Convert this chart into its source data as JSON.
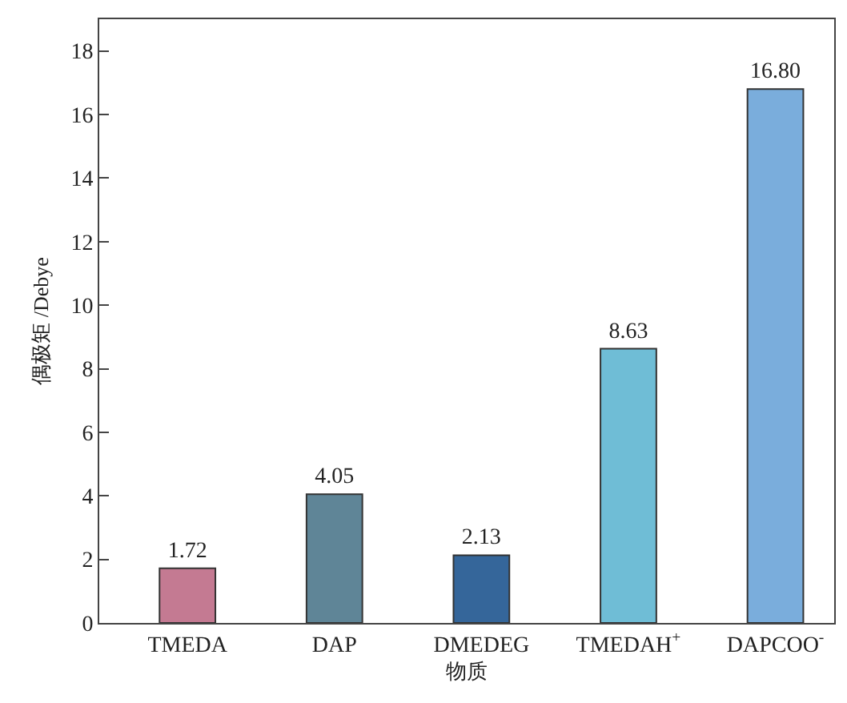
{
  "chart_data": {
    "type": "bar",
    "xlabel": "物质",
    "ylabel": "偶极矩 /Debye",
    "categories": [
      "TMEDA",
      "DAP",
      "DMEDEG",
      "TMEDAH$^{+}$",
      "DAPCOO$^{-}$"
    ],
    "values": [
      1.72,
      4.05,
      2.13,
      8.63,
      16.8
    ],
    "colors": [
      "#c47a92",
      "#5f8597",
      "#35669a",
      "#6fbdd6",
      "#7aaddc"
    ],
    "value_labels": [
      "1.72",
      "4.05",
      "2.13",
      "8.63",
      "16.80"
    ],
    "ylim": [
      0,
      19
    ],
    "yticks": [
      0,
      2,
      4,
      6,
      8,
      10,
      12,
      14,
      16,
      18
    ]
  }
}
